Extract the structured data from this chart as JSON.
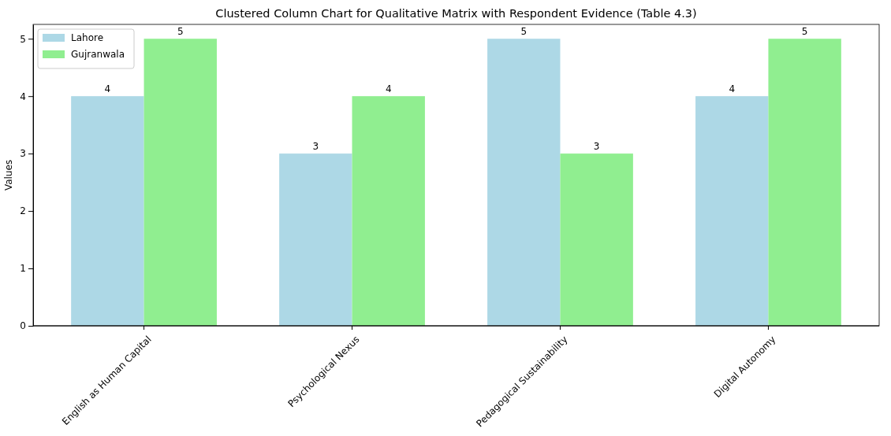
{
  "chart_data": {
    "type": "bar",
    "title": "Clustered Column Chart for Qualitative Matrix with Respondent Evidence (Table 4.3)",
    "ylabel": "Values",
    "categories": [
      "English as Human Capital",
      "Psychological Nexus",
      "Pedagogical Sustainability",
      "Digital Autonomy"
    ],
    "series": [
      {
        "name": "Lahore",
        "color": "#add8e6",
        "values": [
          4,
          3,
          5,
          4
        ]
      },
      {
        "name": "Gujranwala",
        "color": "#90ee90",
        "values": [
          5,
          4,
          3,
          5
        ]
      }
    ],
    "ylim": [
      0,
      5.25
    ],
    "yticks": [
      0,
      1,
      2,
      3,
      4,
      5
    ],
    "grid": false,
    "legend": "top left",
    "data_labels": true
  }
}
